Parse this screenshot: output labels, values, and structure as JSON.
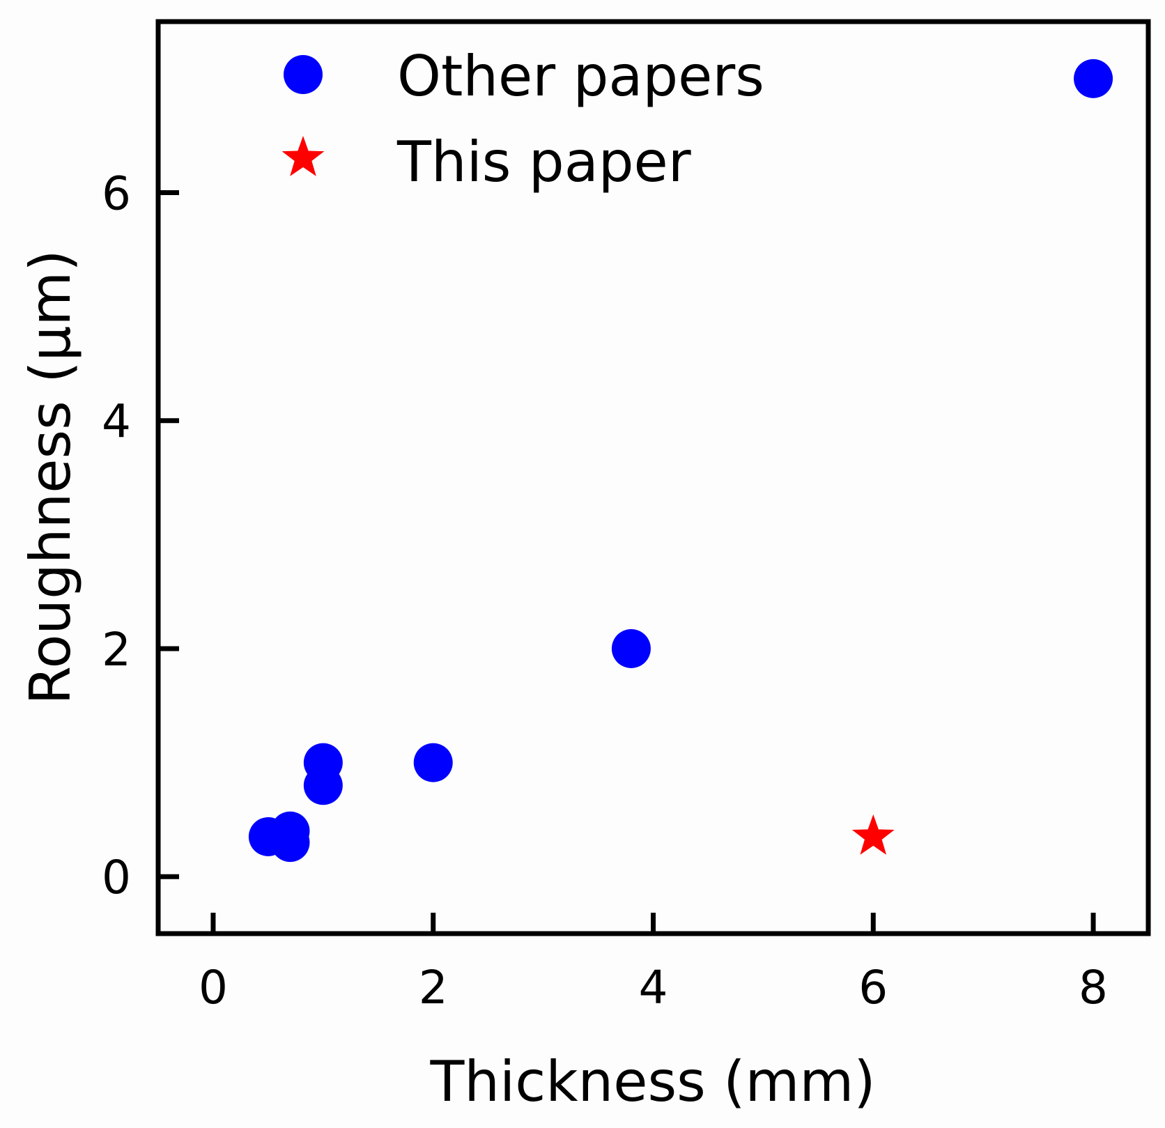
{
  "chart_data": {
    "type": "scatter",
    "title": "",
    "xlabel": "Thickness (mm)",
    "ylabel": "Roughness (µm)",
    "xlim": [
      -0.5,
      8.5
    ],
    "ylim": [
      -0.5,
      7.5
    ],
    "xticks": [
      "0",
      "2",
      "4",
      "6",
      "8"
    ],
    "yticks": [
      "0",
      "2",
      "4",
      "6"
    ],
    "grid": false,
    "legend_position": "top-left",
    "series": [
      {
        "name": "Other papers",
        "marker": "circle",
        "color": "#0000ff",
        "points": [
          {
            "x": 0.5,
            "y": 0.35
          },
          {
            "x": 0.7,
            "y": 0.4
          },
          {
            "x": 0.7,
            "y": 0.3
          },
          {
            "x": 1.0,
            "y": 1.0
          },
          {
            "x": 1.0,
            "y": 0.8
          },
          {
            "x": 2.0,
            "y": 1.0
          },
          {
            "x": 3.8,
            "y": 2.0
          },
          {
            "x": 8.0,
            "y": 7.0
          }
        ]
      },
      {
        "name": "This paper",
        "marker": "star",
        "color": "#ff0000",
        "points": [
          {
            "x": 6.0,
            "y": 0.35
          }
        ]
      }
    ]
  }
}
